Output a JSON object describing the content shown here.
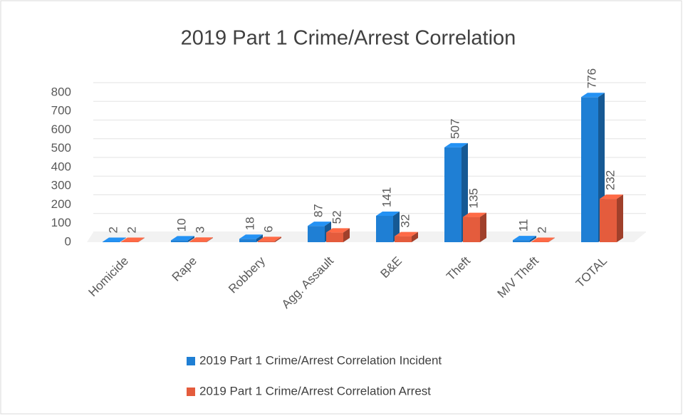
{
  "chart_data": {
    "type": "bar",
    "title": "2019 Part 1 Crime/Arrest Correlation",
    "categories": [
      "Homicide",
      "Rape",
      "Robbery",
      "Agg. Assault",
      "B&E",
      "Theft",
      "M/V Theft",
      "TOTAL"
    ],
    "series": [
      {
        "name": "2019 Part 1 Crime/Arrest Correlation Incident",
        "color": "#1f7fd4",
        "values": [
          2,
          10,
          18,
          87,
          141,
          507,
          11,
          776
        ]
      },
      {
        "name": "2019 Part 1 Crime/Arrest Correlation Arrest",
        "color": "#e45c3d",
        "values": [
          2,
          3,
          6,
          52,
          32,
          135,
          2,
          232
        ]
      }
    ],
    "ylim": [
      0,
      800
    ],
    "yticks": [
      0,
      100,
      200,
      300,
      400,
      500,
      600,
      700,
      800
    ],
    "grid": true,
    "legend": "bottom"
  }
}
